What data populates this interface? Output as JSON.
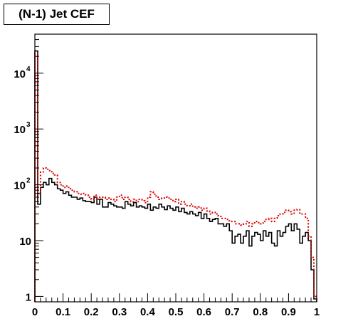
{
  "title": "(N-1) Jet CEF",
  "chart_data": {
    "type": "histogram",
    "title": "(N-1) Jet CEF",
    "xlabel": "",
    "ylabel": "",
    "xlim": [
      0,
      1
    ],
    "ylim": [
      0.8,
      50000
    ],
    "yscale": "log",
    "bins": 100,
    "x_ticks": [
      "0",
      "0.1",
      "0.2",
      "0.3",
      "0.4",
      "0.5",
      "0.6",
      "0.7",
      "0.8",
      "0.9",
      "1"
    ],
    "y_ticks": [
      {
        "value": 1,
        "base": "1",
        "exp": ""
      },
      {
        "value": 10,
        "base": "10",
        "exp": ""
      },
      {
        "value": 100,
        "base": "10",
        "exp": "2"
      },
      {
        "value": 1000,
        "base": "10",
        "exp": "3"
      },
      {
        "value": 10000,
        "base": "10",
        "exp": "4"
      }
    ],
    "series": [
      {
        "color": "#000000",
        "style": "solid",
        "values": [
          25000,
          45,
          90,
          110,
          100,
          130,
          110,
          100,
          85,
          80,
          70,
          75,
          65,
          60,
          60,
          55,
          58,
          52,
          50,
          50,
          48,
          60,
          45,
          55,
          40,
          40,
          48,
          45,
          42,
          40,
          40,
          38,
          50,
          45,
          42,
          48,
          40,
          42,
          40,
          38,
          45,
          35,
          40,
          38,
          45,
          40,
          36,
          42,
          38,
          35,
          40,
          33,
          38,
          32,
          30,
          33,
          30,
          28,
          32,
          25,
          30,
          25,
          22,
          24,
          25,
          20,
          20,
          18,
          20,
          15,
          9,
          12,
          13,
          9,
          12,
          15,
          8,
          12,
          14,
          13,
          10,
          15,
          12,
          14,
          9,
          8,
          15,
          12,
          14,
          18,
          20,
          15,
          20,
          16,
          9,
          12,
          14,
          10,
          3,
          0.9
        ]
      },
      {
        "color": "#dd0000",
        "style": "dotted",
        "values": [
          22000,
          70,
          170,
          200,
          190,
          180,
          160,
          150,
          110,
          100,
          90,
          95,
          85,
          80,
          75,
          70,
          68,
          70,
          65,
          60,
          55,
          65,
          55,
          60,
          60,
          55,
          58,
          55,
          50,
          60,
          65,
          55,
          60,
          55,
          50,
          55,
          50,
          55,
          52,
          48,
          60,
          75,
          68,
          60,
          55,
          58,
          60,
          58,
          55,
          50,
          55,
          45,
          50,
          45,
          42,
          45,
          40,
          38,
          40,
          35,
          38,
          34,
          30,
          32,
          30,
          28,
          25,
          25,
          24,
          22,
          22,
          20,
          20,
          19,
          20,
          22,
          18,
          20,
          22,
          21,
          20,
          22,
          24,
          25,
          22,
          25,
          28,
          30,
          32,
          35,
          33,
          30,
          35,
          36,
          30,
          30,
          25,
          12,
          5,
          1.0
        ]
      }
    ]
  }
}
